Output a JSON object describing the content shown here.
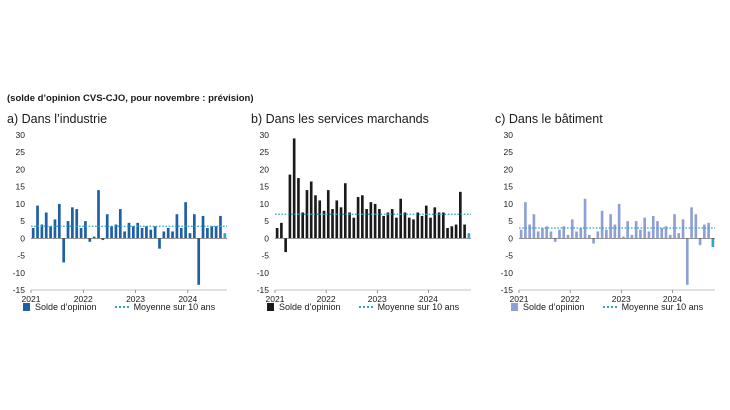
{
  "subtitle": "(solde d’opinion CVS-CJO, pour novembre : prévision)",
  "legend": {
    "bar_label": "Solde d’opinion",
    "mean_label": "Moyenne sur 10 ans"
  },
  "chart_data": [
    {
      "type": "bar",
      "title": "a)  Dans l’industrie",
      "bar_color": "#1f5fa6",
      "mean_color": "#2aa7c4",
      "last_bar_color": "#2aa7c4",
      "mean_value": 3.5,
      "ylim": [
        -15,
        30
      ],
      "yticks": [
        30,
        25,
        20,
        15,
        10,
        5,
        0,
        -5,
        -10,
        -15
      ],
      "xticks": [
        "2021",
        "2022",
        "2023",
        "2024"
      ],
      "values": [
        3.0,
        9.5,
        4.0,
        7.5,
        3.5,
        5.5,
        10.0,
        -7.0,
        5.0,
        9.0,
        8.5,
        3.0,
        5.0,
        -1.0,
        0.5,
        14.0,
        -0.5,
        7.0,
        3.5,
        4.0,
        8.5,
        2.0,
        4.5,
        3.5,
        4.5,
        3.0,
        3.5,
        2.5,
        3.5,
        -3.0,
        2.0,
        3.0,
        2.0,
        7.0,
        3.0,
        10.5,
        1.5,
        7.0,
        -13.5,
        6.5,
        3.0,
        3.5,
        3.5,
        6.5,
        1.5
      ]
    },
    {
      "type": "bar",
      "title": "b)  Dans les services marchands",
      "bar_color": "#1a1a1a",
      "mean_color": "#2aa7c4",
      "last_bar_color": "#2aa7c4",
      "mean_value": 7.0,
      "ylim": [
        -15,
        30
      ],
      "yticks": [
        30,
        25,
        20,
        15,
        10,
        5,
        0,
        -5,
        -10,
        -15
      ],
      "xticks": [
        "2021",
        "2022",
        "2023",
        "2024"
      ],
      "values": [
        3.0,
        4.5,
        -4.0,
        18.5,
        29.0,
        17.5,
        7.5,
        14.0,
        16.5,
        12.5,
        11.0,
        8.0,
        14.0,
        8.5,
        11.0,
        9.0,
        16.0,
        7.5,
        6.0,
        12.0,
        12.5,
        8.5,
        10.5,
        10.0,
        8.5,
        6.5,
        7.5,
        8.5,
        6.0,
        11.5,
        7.5,
        6.0,
        5.5,
        7.5,
        6.5,
        9.5,
        6.0,
        9.0,
        7.5,
        7.5,
        3.0,
        3.5,
        4.0,
        13.5,
        4.0,
        1.5
      ]
    },
    {
      "type": "bar",
      "title": "c)  Dans le bâtiment",
      "bar_color": "#8f9fd6",
      "mean_color": "#2aa7c4",
      "last_bar_color": "#2aa7c4",
      "mean_value": 3.0,
      "ylim": [
        -15,
        30
      ],
      "yticks": [
        30,
        25,
        20,
        15,
        10,
        5,
        0,
        -5,
        -10,
        -15
      ],
      "xticks": [
        "2021",
        "2022",
        "2023",
        "2024"
      ],
      "values": [
        2.5,
        10.5,
        4.0,
        7.0,
        2.0,
        3.0,
        3.5,
        2.0,
        -1.0,
        2.5,
        3.5,
        1.0,
        5.5,
        2.0,
        3.0,
        11.5,
        1.0,
        -1.5,
        2.0,
        8.0,
        2.5,
        7.0,
        4.0,
        10.0,
        0.5,
        5.0,
        1.0,
        5.0,
        2.5,
        6.0,
        2.0,
        6.5,
        5.0,
        3.0,
        3.5,
        1.0,
        7.0,
        1.5,
        5.5,
        -13.5,
        9.0,
        7.0,
        -2.0,
        4.0,
        4.5,
        -2.5
      ]
    }
  ]
}
